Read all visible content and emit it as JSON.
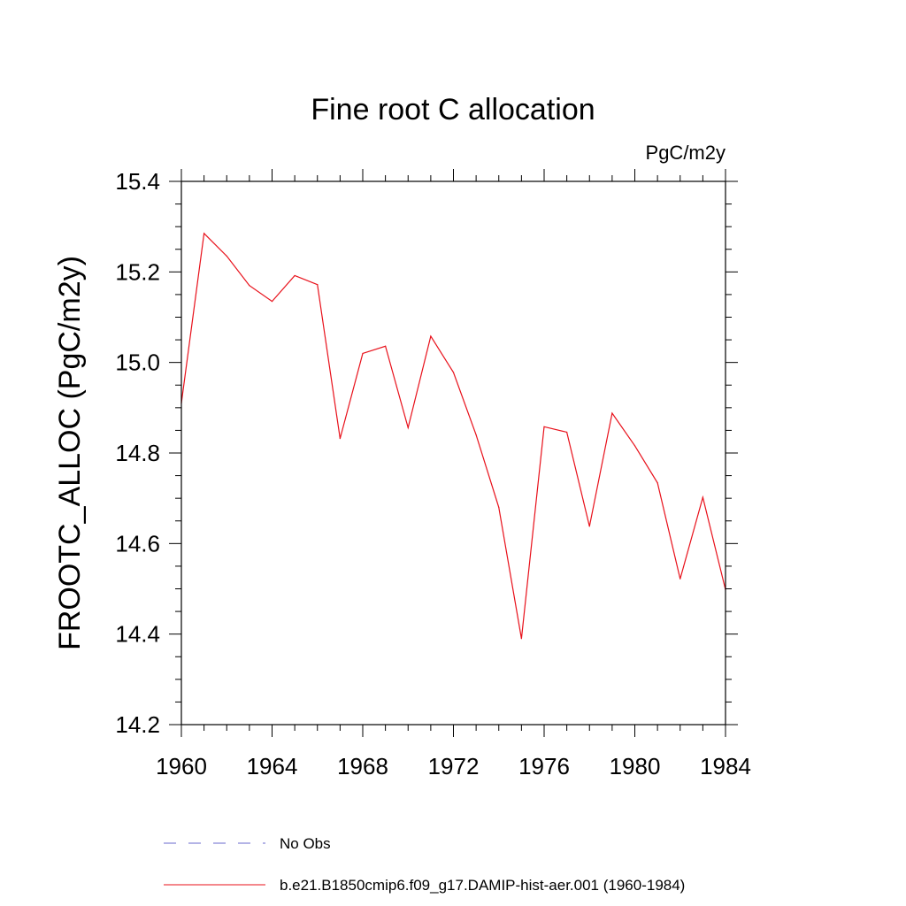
{
  "chart_data": {
    "type": "line",
    "title": "Fine root C allocation",
    "units_label": "PgC/m2y",
    "ylabel": "FROOTC_ALLOC  (PgC/m2y)",
    "xlabel": "",
    "xlim": [
      1960,
      1984
    ],
    "ylim": [
      14.2,
      15.4
    ],
    "x_ticks": [
      1960,
      1964,
      1968,
      1972,
      1976,
      1980,
      1984
    ],
    "y_ticks": [
      "14.2",
      "14.4",
      "14.6",
      "14.8",
      "15.0",
      "15.2",
      "15.4"
    ],
    "grid": false,
    "legend_placement": "bottom",
    "series": [
      {
        "name": "b.e21.B1850cmip6.f09_g17.DAMIP-hist-aer.001 (1960-1984)",
        "color": "#e8101a",
        "style": "solid",
        "x": [
          1960,
          1961,
          1962,
          1963,
          1964,
          1965,
          1966,
          1967,
          1968,
          1969,
          1970,
          1971,
          1972,
          1973,
          1974,
          1975,
          1976,
          1977,
          1978,
          1979,
          1980,
          1981,
          1982,
          1983,
          1984
        ],
        "values": [
          14.91,
          15.285,
          15.235,
          15.17,
          15.135,
          15.192,
          15.172,
          14.832,
          15.02,
          15.036,
          14.856,
          15.058,
          14.978,
          14.84,
          14.68,
          14.39,
          14.858,
          14.846,
          14.638,
          14.888,
          14.816,
          14.734,
          14.522,
          14.702,
          14.498
        ]
      }
    ],
    "legend": [
      {
        "label": "No Obs",
        "color": "#6a6acd",
        "style": "dashed"
      },
      {
        "label": "b.e21.B1850cmip6.f09_g17.DAMIP-hist-aer.001 (1960-1984)",
        "color": "#e8101a",
        "style": "solid"
      }
    ]
  }
}
